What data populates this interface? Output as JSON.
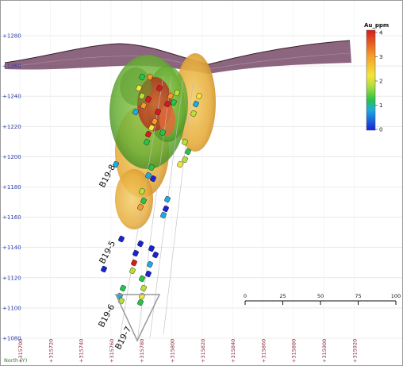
{
  "y_axis": {
    "ticks": [
      "+1280",
      "+1260",
      "+1240",
      "+1220",
      "+1200",
      "+1180",
      "+1160",
      "+1140",
      "+1120",
      "+1100",
      "+1080"
    ]
  },
  "x_axis": {
    "name": "North (Y)",
    "ticks": [
      "+315700",
      "+315720",
      "+315740",
      "+315760",
      "+315780",
      "+315800",
      "+315820",
      "+315840",
      "+315860",
      "+315880",
      "+315900",
      "+315920"
    ]
  },
  "legend": {
    "title": "Au_ppm",
    "labels": [
      "4",
      "3",
      "2",
      "1",
      "0"
    ]
  },
  "scale_bar": {
    "labels": [
      "0",
      "25",
      "50",
      "75",
      "100"
    ]
  },
  "drillholes": [
    "B19-8",
    "B19-5",
    "B19-6",
    "B19-7"
  ],
  "colors": {
    "topography": "#6b3a5a",
    "shell_outer": "#e9b13f",
    "shell_inner": "#6fb53a",
    "high_grade": "#c43a2c",
    "grid": "#dcdcdc"
  }
}
